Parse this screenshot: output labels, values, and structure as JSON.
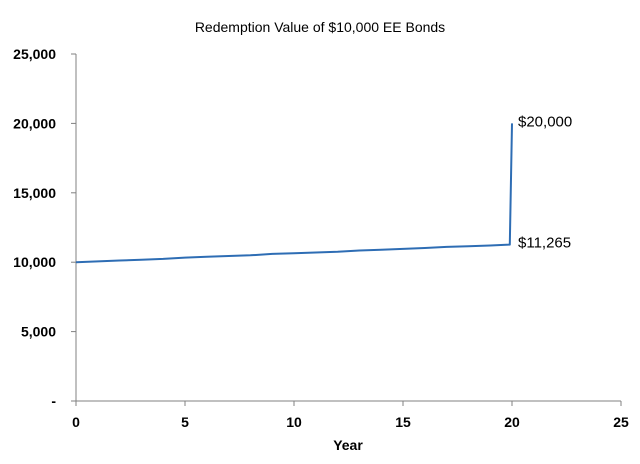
{
  "chart_data": {
    "type": "line",
    "title": "Redemption Value of $10,000 EE Bonds",
    "xlabel": "Year",
    "ylabel": "",
    "xlim": [
      0,
      25
    ],
    "ylim": [
      0,
      25000
    ],
    "x_ticks": [
      "0",
      "5",
      "10",
      "15",
      "20",
      "25"
    ],
    "y_ticks": [
      "-",
      "5,000",
      "10,000",
      "15,000",
      "20,000",
      "25,000"
    ],
    "grid": false,
    "legend": "none",
    "series": [
      {
        "color": "#2e6db4",
        "points": [
          [
            0,
            10000
          ],
          [
            1,
            10060
          ],
          [
            2,
            10120
          ],
          [
            3,
            10180
          ],
          [
            4,
            10240
          ],
          [
            5,
            10330
          ],
          [
            6,
            10390
          ],
          [
            7,
            10450
          ],
          [
            8,
            10500
          ],
          [
            9,
            10600
          ],
          [
            10,
            10650
          ],
          [
            11,
            10700
          ],
          [
            12,
            10750
          ],
          [
            13,
            10840
          ],
          [
            14,
            10900
          ],
          [
            15,
            10960
          ],
          [
            16,
            11020
          ],
          [
            17,
            11100
          ],
          [
            18,
            11150
          ],
          [
            19,
            11200
          ],
          [
            19.9,
            11265
          ],
          [
            20,
            20000
          ]
        ]
      }
    ],
    "annotations": [
      {
        "text": "$20,000",
        "x": 20,
        "y": 20000
      },
      {
        "text": "$11,265",
        "x": 20,
        "y": 11265
      }
    ]
  }
}
